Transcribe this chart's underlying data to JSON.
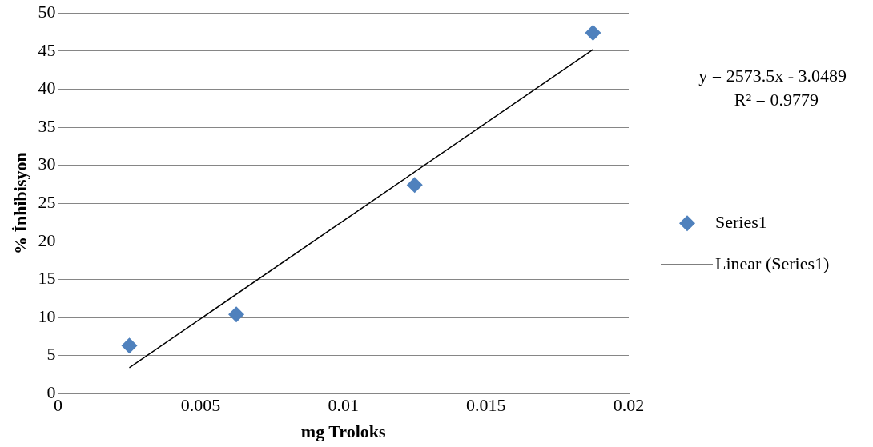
{
  "chart_data": {
    "type": "scatter",
    "xlabel": "mg Troloks",
    "ylabel": "% İnhibisyon",
    "xlim": [
      0,
      0.02
    ],
    "xticks": [
      0,
      0.005,
      0.01,
      0.015,
      0.02
    ],
    "ylim": [
      0,
      50
    ],
    "yticks": [
      0,
      5,
      10,
      15,
      20,
      25,
      30,
      35,
      40,
      45,
      50
    ],
    "grid": "y",
    "legend": "right",
    "series": [
      {
        "name": "Series1",
        "marker": "diamond",
        "color": "#4f81bd",
        "x": [
          0.0025,
          0.00625,
          0.0125,
          0.01875
        ],
        "values": [
          6.3,
          10.4,
          27.4,
          47.4
        ]
      },
      {
        "name": "Linear (Series1)",
        "type": "line",
        "marker": "none",
        "color": "#000000",
        "x": [
          0.0025,
          0.01875
        ],
        "values": [
          3.4,
          45.2
        ]
      }
    ],
    "annotations": [
      "y = 2573.5x - 3.0489",
      "R² = 0.9779"
    ]
  }
}
